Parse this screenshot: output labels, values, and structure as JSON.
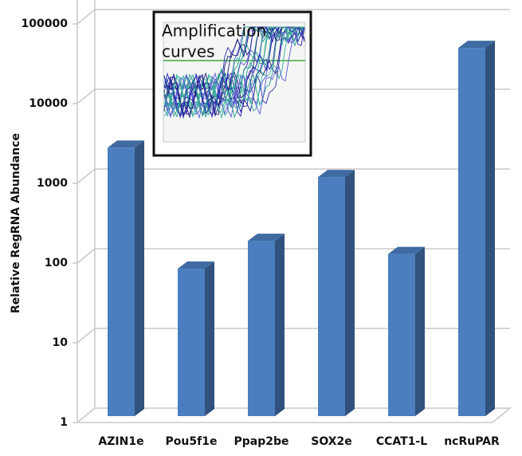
{
  "chart_data": {
    "type": "bar3d",
    "y_label": "Relative RegRNA Abundance",
    "categories": [
      "AZIN1e",
      "Pou5f1e",
      "Ppap2be",
      "SOX2e",
      "CCAT1-L",
      "ncRuPAR"
    ],
    "values": [
      2800,
      85,
      190,
      1200,
      130,
      50000
    ],
    "color": "#4a7ebf",
    "log_scale": true,
    "ylim": [
      1,
      100000
    ],
    "yticks": [
      1,
      10,
      100,
      1000,
      10000,
      100000
    ],
    "grid": true,
    "inset_label": [
      "Amplification",
      "curves"
    ]
  }
}
